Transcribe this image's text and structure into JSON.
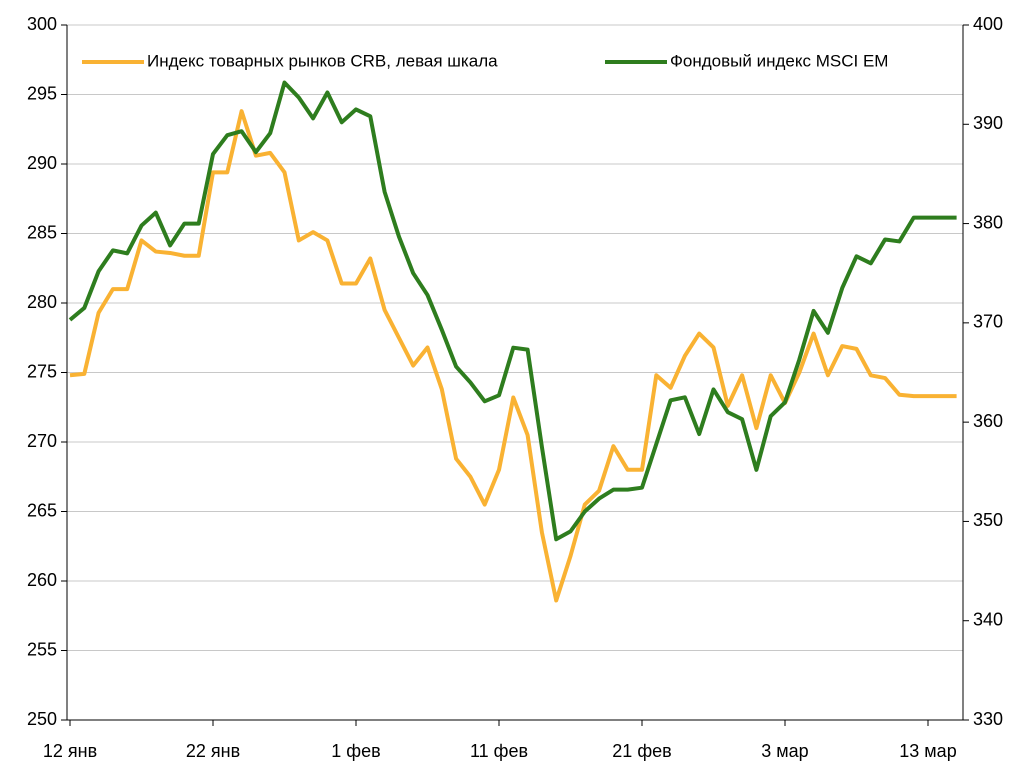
{
  "chart_data": {
    "type": "line",
    "categories": [
      "12 янв",
      null,
      null,
      null,
      null,
      null,
      null,
      null,
      null,
      null,
      "22 янв",
      null,
      null,
      null,
      null,
      null,
      null,
      null,
      null,
      null,
      "1 фев",
      null,
      null,
      null,
      null,
      null,
      null,
      null,
      null,
      null,
      "11 фев",
      null,
      null,
      null,
      null,
      null,
      null,
      null,
      null,
      null,
      "21 фев",
      null,
      null,
      null,
      null,
      null,
      null,
      null,
      null,
      null,
      "3 мар",
      null,
      null,
      null,
      null,
      null,
      null,
      null,
      null,
      null,
      "13 мар",
      null,
      null
    ],
    "series": [
      {
        "name": "Индекс товарных рынков CRB, левая шкала",
        "color": "#f9b233",
        "axis": "y",
        "values": [
          274.8,
          274.9,
          279.3,
          281,
          281,
          284.5,
          283.7,
          283.6,
          283.4,
          283.4,
          289.4,
          289.4,
          293.8,
          290.6,
          290.8,
          289.4,
          284.5,
          285.1,
          284.5,
          281.4,
          281.4,
          283.2,
          279.5,
          277.5,
          275.5,
          276.8,
          273.8,
          268.8,
          267.5,
          265.5,
          268,
          273.2,
          270.5,
          263.5,
          258.6,
          261.8,
          265.5,
          266.5,
          269.7,
          268,
          268,
          274.8,
          273.9,
          276.2,
          277.8,
          276.8,
          272.6,
          274.8,
          271,
          274.8,
          272.8,
          275,
          277.8,
          274.8,
          276.9,
          276.7,
          274.8,
          274.6,
          273.4,
          273.3,
          273.3,
          273.3,
          273.3
        ]
      },
      {
        "name": "Фондовый индекс MSCI EM",
        "color": "#2e7d1e",
        "axis": "y2",
        "values": [
          370.3,
          371.5,
          375.2,
          377.3,
          377,
          379.8,
          381.1,
          377.8,
          380,
          380,
          387,
          388.9,
          389.3,
          387.2,
          389.1,
          394.2,
          392.7,
          390.6,
          393.2,
          390.2,
          391.5,
          390.8,
          383.2,
          378.7,
          375,
          372.8,
          369.3,
          365.6,
          364,
          362.1,
          362.7,
          367.5,
          367.3,
          357.5,
          348.2,
          349,
          351,
          352.3,
          353.2,
          353.2,
          353.4,
          357.8,
          362.2,
          362.5,
          358.8,
          363.3,
          361,
          360.3,
          355.2,
          360.6,
          362,
          366.3,
          371.2,
          369,
          373.5,
          376.7,
          376,
          378.4,
          378.2,
          380.6,
          380.6,
          380.6,
          380.6
        ]
      }
    ],
    "ylim": [
      250,
      300
    ],
    "yticks": [
      250,
      255,
      260,
      265,
      270,
      275,
      280,
      285,
      290,
      295,
      300
    ],
    "y2lim": [
      330,
      400
    ],
    "y2ticks": [
      330,
      340,
      350,
      360,
      370,
      380,
      390,
      400
    ],
    "grid": true,
    "legend": "top"
  }
}
